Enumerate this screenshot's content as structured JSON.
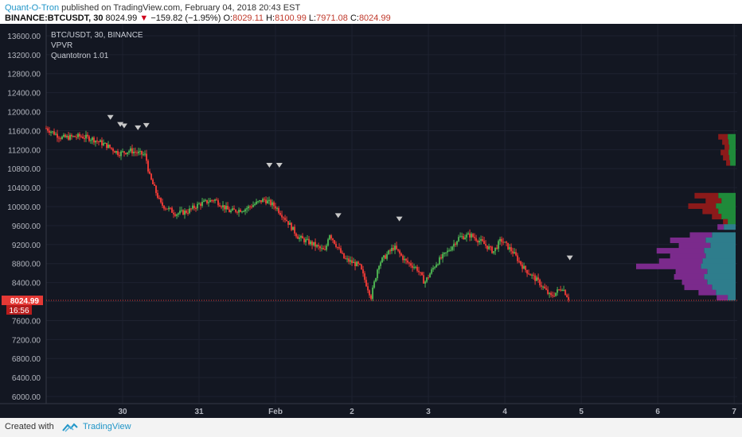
{
  "header": {
    "author": "Quant-O-Tron",
    "published_text": "published on TradingView.com, February 04, 2018 20:43 EST",
    "symbol": "BINANCE:BTCUSDT, 30",
    "last": "8024.99",
    "arrow": "▼",
    "change": "−159.82 (−1.95%)",
    "o_label": "O:",
    "o_value": "8029.11",
    "h_label": "H:",
    "h_value": "8100.99",
    "l_label": "L:",
    "l_value": "7971.08",
    "c_label": "C:",
    "c_value": "8024.99"
  },
  "legend": {
    "line1": "BTC/USDT, 30, BINANCE",
    "line2": "VPVR",
    "line3": "Quantotron 1.01"
  },
  "price_tag": {
    "price": "8024.99",
    "countdown": "16:56"
  },
  "footer": {
    "created_with": "Created with",
    "brand": "TradingView"
  },
  "colors": {
    "background": "#131722",
    "grid": "#1e2230",
    "up": "#4caf50",
    "down": "#e53935",
    "axis_text": "#b2b5be",
    "price_tag": "#e53935",
    "marker": "#c8c8c8",
    "vp_up_main": "#1f8a3a",
    "vp_down_main": "#8b1a1a",
    "vp_up_low": "#2e7d8c",
    "vp_down_low": "#7b2a8c"
  },
  "chart_data": {
    "type": "candlestick",
    "title": "BTC/USDT, 30, BINANCE",
    "y_ticks": [
      13600,
      13200,
      12800,
      12400,
      12000,
      11600,
      11200,
      10800,
      10400,
      10000,
      9600,
      9200,
      8800,
      8400,
      8000,
      7600,
      7200,
      6800,
      6400,
      6000
    ],
    "ylim": [
      5850,
      13850
    ],
    "x_ticks": [
      "30",
      "31",
      "Feb",
      "2",
      "3",
      "4",
      "5",
      "6",
      "7"
    ],
    "x_tick_days": [
      0,
      1,
      2,
      3,
      4,
      5,
      6,
      7,
      8
    ],
    "xlim_days": [
      -1.0,
      8.04
    ],
    "last_price": 8024.99,
    "price_path": [
      [
        -1.0,
        11650
      ],
      [
        -0.8,
        11450
      ],
      [
        -0.55,
        11480
      ],
      [
        -0.4,
        11430
      ],
      [
        -0.2,
        11280
      ],
      [
        -0.05,
        11120
      ],
      [
        0.1,
        11180
      ],
      [
        0.3,
        11080
      ],
      [
        0.35,
        10650
      ],
      [
        0.5,
        10050
      ],
      [
        0.7,
        9850
      ],
      [
        0.85,
        9900
      ],
      [
        1.0,
        10050
      ],
      [
        1.2,
        10150
      ],
      [
        1.4,
        9900
      ],
      [
        1.6,
        9950
      ],
      [
        1.85,
        10150
      ],
      [
        2.0,
        10000
      ],
      [
        2.15,
        9700
      ],
      [
        2.3,
        9350
      ],
      [
        2.5,
        9200
      ],
      [
        2.65,
        9050
      ],
      [
        2.7,
        9450
      ],
      [
        2.9,
        8900
      ],
      [
        3.1,
        8750
      ],
      [
        3.25,
        8100
      ],
      [
        3.35,
        8800
      ],
      [
        3.55,
        9150
      ],
      [
        3.7,
        8850
      ],
      [
        3.85,
        8700
      ],
      [
        3.95,
        8400
      ],
      [
        4.1,
        8800
      ],
      [
        4.25,
        9050
      ],
      [
        4.4,
        9350
      ],
      [
        4.55,
        9400
      ],
      [
        4.7,
        9250
      ],
      [
        4.85,
        9050
      ],
      [
        4.95,
        9300
      ],
      [
        5.1,
        9050
      ],
      [
        5.25,
        8700
      ],
      [
        5.45,
        8400
      ],
      [
        5.6,
        8100
      ],
      [
        5.75,
        8300
      ],
      [
        5.85,
        8025
      ]
    ],
    "sell_markers": [
      [
        -0.16,
        11880
      ],
      [
        -0.03,
        11730
      ],
      [
        0.02,
        11700
      ],
      [
        0.2,
        11660
      ],
      [
        0.31,
        11710
      ],
      [
        1.92,
        10870
      ],
      [
        2.05,
        10870
      ],
      [
        2.82,
        9810
      ],
      [
        3.62,
        9740
      ],
      [
        5.85,
        8920
      ]
    ],
    "volume_profile": [
      {
        "price": 11470,
        "up": 10,
        "down": 12
      },
      {
        "price": 11360,
        "up": 9,
        "down": 8
      },
      {
        "price": 11250,
        "up": 8,
        "down": 6
      },
      {
        "price": 11140,
        "up": 9,
        "down": 10
      },
      {
        "price": 11030,
        "up": 8,
        "down": 8
      },
      {
        "price": 10920,
        "up": 7,
        "down": 5
      },
      {
        "price": 10230,
        "up": 22,
        "down": 30
      },
      {
        "price": 10120,
        "up": 18,
        "down": 20
      },
      {
        "price": 10010,
        "up": 25,
        "down": 35
      },
      {
        "price": 9900,
        "up": 22,
        "down": 20
      },
      {
        "price": 9790,
        "up": 18,
        "down": 12
      },
      {
        "price": 9680,
        "up": 10,
        "down": 6
      },
      {
        "price": 9570,
        "up": 15,
        "down": 8
      },
      {
        "price": 9400,
        "up": 30,
        "down": 28
      },
      {
        "price": 9290,
        "up": 38,
        "down": 45
      },
      {
        "price": 9180,
        "up": 32,
        "down": 40
      },
      {
        "price": 9070,
        "up": 40,
        "down": 60
      },
      {
        "price": 8960,
        "up": 38,
        "down": 45
      },
      {
        "price": 8850,
        "up": 42,
        "down": 55
      },
      {
        "price": 8740,
        "up": 44,
        "down": 82
      },
      {
        "price": 8630,
        "up": 36,
        "down": 40
      },
      {
        "price": 8520,
        "up": 40,
        "down": 38
      },
      {
        "price": 8410,
        "up": 36,
        "down": 32
      },
      {
        "price": 8300,
        "up": 30,
        "down": 35
      },
      {
        "price": 8190,
        "up": 25,
        "down": 22
      },
      {
        "price": 8080,
        "up": 10,
        "down": 14
      }
    ]
  }
}
